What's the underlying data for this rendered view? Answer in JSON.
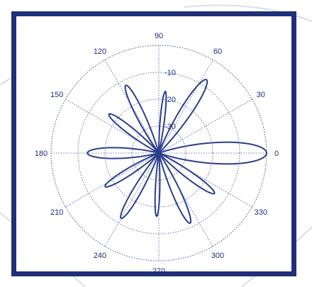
{
  "chart_data": {
    "type": "polar-line",
    "title": "",
    "angle_unit": "degrees",
    "angle_ticks": [
      "0",
      "30",
      "60",
      "90",
      "120",
      "150",
      "180",
      "210",
      "240",
      "270",
      "300",
      "330"
    ],
    "radial_ticks": [
      "-10",
      "-20",
      "-30"
    ],
    "radial_range_db": [
      -40,
      0
    ],
    "grid": true,
    "colors": {
      "line": "#2b3f8c",
      "grid": "#3f4f9a",
      "frame": "#1f2f7a"
    },
    "lobes": [
      {
        "dir": 0,
        "peak_db": 0,
        "width": 40
      },
      {
        "dir": 57,
        "peak_db": -7.5,
        "width": 26
      },
      {
        "dir": 84,
        "peak_db": -17,
        "width": 14
      },
      {
        "dir": 116,
        "peak_db": -12,
        "width": 22
      },
      {
        "dir": 142,
        "peak_db": -16.5,
        "width": 22
      },
      {
        "dir": 180,
        "peak_db": -13.5,
        "width": 30
      },
      {
        "dir": 212,
        "peak_db": -16.5,
        "width": 22
      },
      {
        "dir": 240,
        "peak_db": -12,
        "width": 22
      },
      {
        "dir": 268,
        "peak_db": -16.5,
        "width": 14
      },
      {
        "dir": 294,
        "peak_db": -11.5,
        "width": 22
      },
      {
        "dir": 324,
        "peak_db": -14.5,
        "width": 22
      }
    ]
  }
}
